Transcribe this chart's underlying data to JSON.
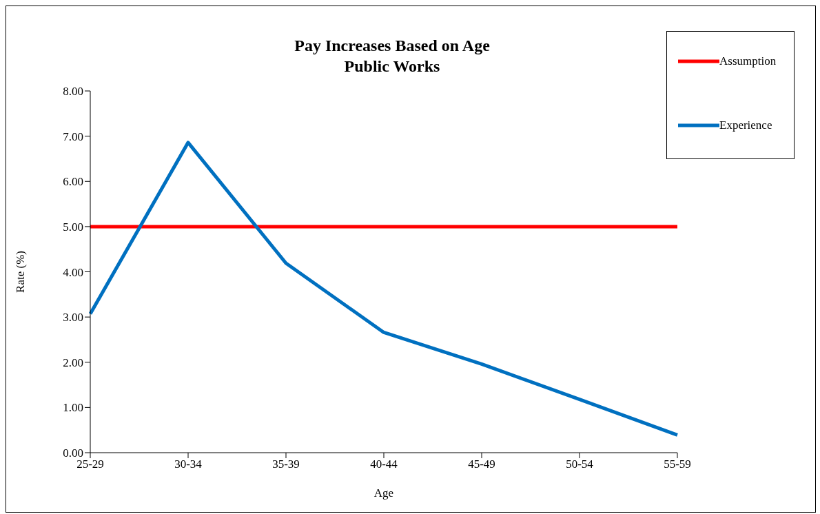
{
  "chart_data": {
    "type": "line",
    "title": "Pay Increases Based on Age",
    "subtitle": "Public Works",
    "xlabel": "Age",
    "ylabel": "Rate (%)",
    "categories": [
      "25-29",
      "30-34",
      "35-39",
      "40-44",
      "45-49",
      "50-54",
      "55-59"
    ],
    "series": [
      {
        "name": "Assumption",
        "color": "#ff0000",
        "values": [
          5,
          5,
          5,
          5,
          5,
          5,
          5
        ]
      },
      {
        "name": "Experience",
        "color": "#0070c0",
        "values": [
          3.07,
          6.86,
          4.19,
          2.66,
          1.96,
          1.18,
          0.39
        ]
      }
    ],
    "ylim": [
      0,
      8
    ],
    "yticks": [
      {
        "value": 0,
        "label": "0.00"
      },
      {
        "value": 1,
        "label": "1.00"
      },
      {
        "value": 2,
        "label": "2.00"
      },
      {
        "value": 3,
        "label": "3.00"
      },
      {
        "value": 4,
        "label": "4.00"
      },
      {
        "value": 5,
        "label": "5.00"
      },
      {
        "value": 6,
        "label": "6.00"
      },
      {
        "value": 7,
        "label": "7.00"
      },
      {
        "value": 8,
        "label": "8.00"
      }
    ],
    "grid": false,
    "legend": "top right",
    "marker": "none",
    "line_style": "solid"
  }
}
